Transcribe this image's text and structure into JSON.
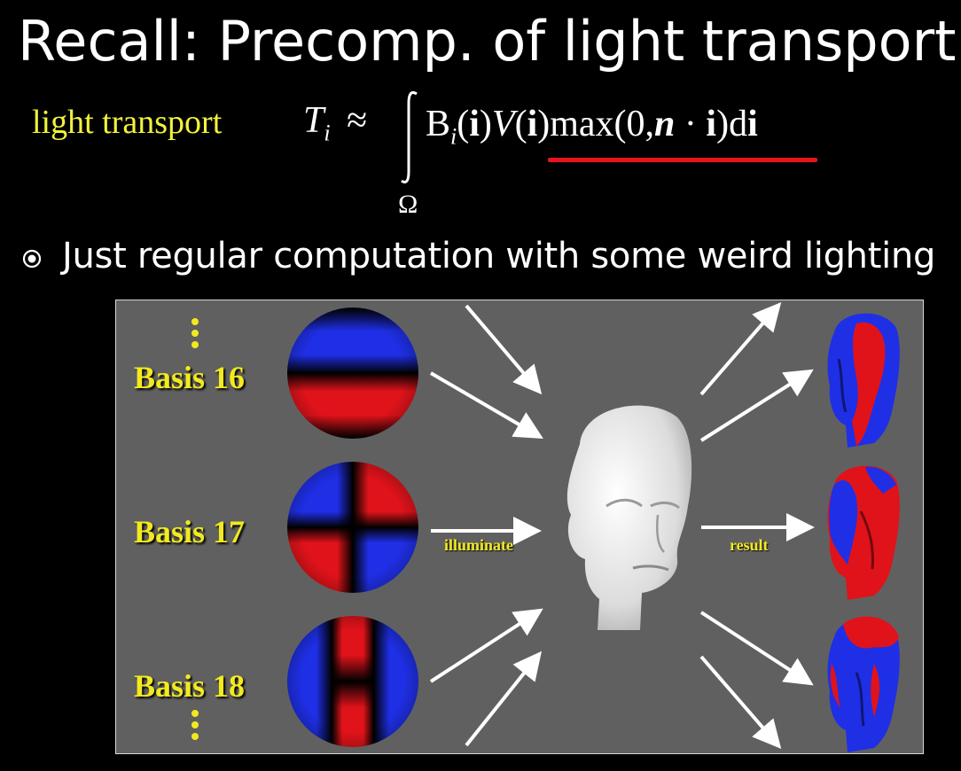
{
  "slide": {
    "title": "Recall: Precomp. of light transport",
    "equation_label": "light transport",
    "equation": {
      "lhs": "T",
      "lhs_sub": "i",
      "approx": "≈",
      "domain": "Ω",
      "basis": "B",
      "basis_sub": "i",
      "paren_open": "(",
      "i": "i",
      "paren_close": ")",
      "visibility": "V",
      "max_term": "max(0,",
      "n": "n",
      "dot": " · ",
      "tail": ")d",
      "accent_color": "#e8141a"
    },
    "bullet": "Just regular computation with some weird lighting"
  },
  "figure": {
    "basis_labels": [
      "Basis 16",
      "Basis 17",
      "Basis 18"
    ],
    "illuminate_label": "illuminate",
    "result_label": "result",
    "label_color": "#f2ea1e",
    "sphere_colors": {
      "positive": "#e0131a",
      "negative": "#1f2fe6"
    },
    "icons": [
      "bullet-circle-icon",
      "arrow-icon",
      "head-sculpture-icon",
      "rendered-head-icon"
    ]
  }
}
